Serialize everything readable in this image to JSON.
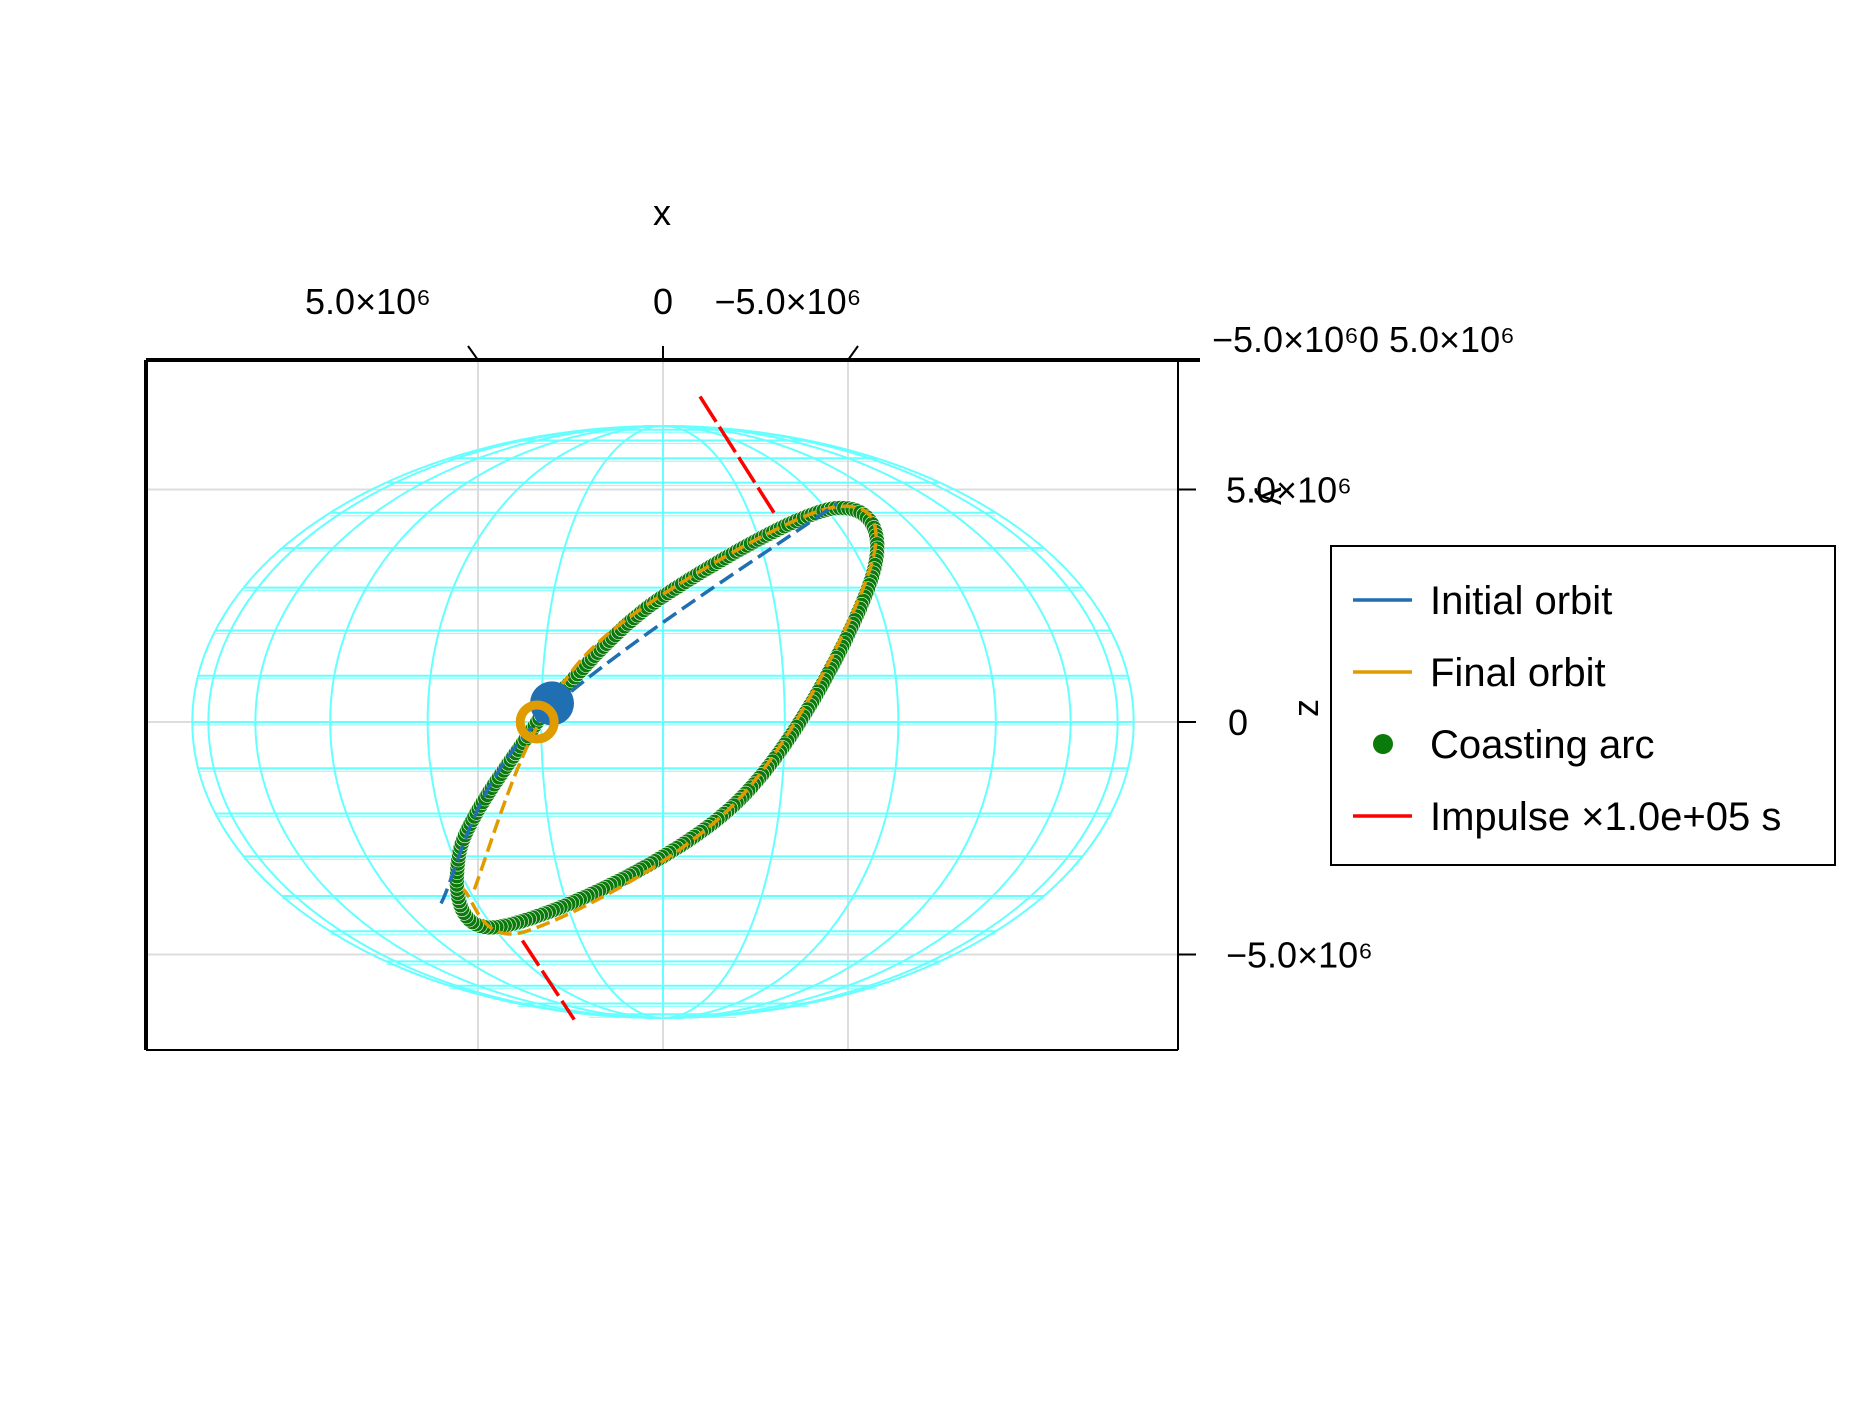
{
  "chart_data": {
    "type": "scatter",
    "title": "",
    "axes": {
      "x": {
        "label": "x",
        "ticks": [
          {
            "value": 5000000,
            "label": "5.0×10⁶"
          },
          {
            "value": 0,
            "label": "0"
          },
          {
            "value": -5000000,
            "label": "−5.0×10⁶"
          }
        ],
        "range": [
          7000000,
          -7000000
        ]
      },
      "y": {
        "label": "y",
        "ticks": [
          {
            "value": -5000000,
            "label": "−5.0×10⁶"
          },
          {
            "value": 0,
            "label": "0"
          },
          {
            "value": 5000000,
            "label": "5.0×10⁶"
          }
        ],
        "overlapping_label_text": "−5.0×10⁶0 5.0×10⁶"
      },
      "z": {
        "label": "z",
        "ticks": [
          {
            "value": -5000000,
            "label": "−5.0×10⁶"
          },
          {
            "value": 0,
            "label": "0"
          },
          {
            "value": 5000000,
            "label": "5.0×10⁶"
          }
        ],
        "range": [
          -7400000,
          7400000
        ]
      }
    },
    "grid": true,
    "legend": {
      "placement": "right",
      "entries": [
        {
          "label": "Initial orbit",
          "kind": "line",
          "color": "#1f6fb2"
        },
        {
          "label": "Final orbit",
          "kind": "line",
          "color": "#e09b00"
        },
        {
          "label": "Coasting arc",
          "kind": "marker",
          "color": "#0a7a0a"
        },
        {
          "label": "Impulse ×1.0e+05 s",
          "kind": "line",
          "color": "#ff0000"
        }
      ]
    },
    "planet": {
      "radius": 6378137,
      "color": "#66ffff"
    },
    "projected_curves": {
      "initial_orbit": [
        {
          "x": 6000000,
          "z": -3900000
        },
        {
          "x": 3400000,
          "z": 0
        },
        {
          "x": -4700000,
          "z": 4700000
        }
      ],
      "final_orbit": [
        {
          "x": 5100000,
          "z": -3600000
        },
        {
          "x": 3400000,
          "z": -100000
        },
        {
          "x": 1000000,
          "z": 2200000
        },
        {
          "x": -4500000,
          "z": 4600000
        },
        {
          "x": -5600000,
          "z": 3300000
        },
        {
          "x": -2000000,
          "z": -1700000
        },
        {
          "x": 3700000,
          "z": -4500000
        },
        {
          "x": 5400000,
          "z": -3600000
        }
      ],
      "coasting_arc": [
        {
          "x": 2700000,
          "z": 700000
        },
        {
          "x": 0,
          "z": 2700000
        },
        {
          "x": -4700000,
          "z": 4600000
        },
        {
          "x": -5600000,
          "z": 3000000
        },
        {
          "x": -1900000,
          "z": -1800000
        },
        {
          "x": 4400000,
          "z": -4400000
        },
        {
          "x": 5500000,
          "z": -2800000
        },
        {
          "x": 3400000,
          "z": 0
        }
      ],
      "impulses": [
        {
          "from": {
            "x": -1000000,
            "z": 7000000
          },
          "to": {
            "x": -3000000,
            "z": 4500000
          }
        },
        {
          "from": {
            "x": 3800000,
            "z": -4700000
          },
          "to": {
            "x": 2400000,
            "z": -6400000
          }
        }
      ],
      "markers": [
        {
          "series": "Initial orbit",
          "x": 3000000,
          "z": 400000,
          "color": "#1f6fb2"
        },
        {
          "series": "Final orbit",
          "x": 3400000,
          "z": 0,
          "color": "#e09b00"
        }
      ]
    }
  }
}
